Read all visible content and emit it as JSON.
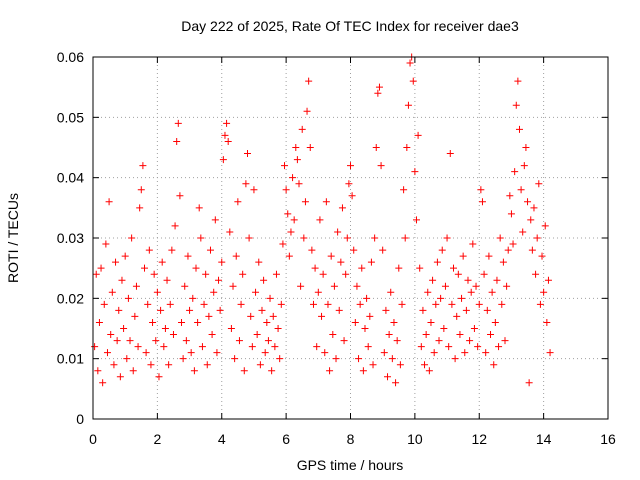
{
  "chart_data": {
    "type": "scatter",
    "title": "Day 222 of 2025, Rate Of TEC Index for receiver dae3",
    "xlabel": "GPS time / hours",
    "ylabel": "ROTI / TECUs",
    "xlim": [
      0,
      16
    ],
    "ylim": [
      0,
      0.06
    ],
    "grid": true,
    "marker": "+",
    "color": "#ff0000",
    "x_ticks": [
      {
        "value": 0,
        "label": "0"
      },
      {
        "value": 2,
        "label": "2"
      },
      {
        "value": 4,
        "label": "4"
      },
      {
        "value": 6,
        "label": "6"
      },
      {
        "value": 8,
        "label": "8"
      },
      {
        "value": 10,
        "label": "10"
      },
      {
        "value": 12,
        "label": "12"
      },
      {
        "value": 14,
        "label": "14"
      },
      {
        "value": 16,
        "label": "16"
      }
    ],
    "y_ticks": [
      {
        "value": 0,
        "label": "0"
      },
      {
        "value": 0.01,
        "label": "0.01"
      },
      {
        "value": 0.02,
        "label": "0.02"
      },
      {
        "value": 0.03,
        "label": "0.03"
      },
      {
        "value": 0.04,
        "label": "0.04"
      },
      {
        "value": 0.05,
        "label": "0.05"
      },
      {
        "value": 0.06,
        "label": "0.06"
      }
    ],
    "series": [
      {
        "name": "ROTI",
        "points": [
          [
            0.05,
            0.012
          ],
          [
            0.1,
            0.024
          ],
          [
            0.15,
            0.008
          ],
          [
            0.2,
            0.016
          ],
          [
            0.25,
            0.025
          ],
          [
            0.3,
            0.006
          ],
          [
            0.35,
            0.019
          ],
          [
            0.4,
            0.029
          ],
          [
            0.45,
            0.011
          ],
          [
            0.5,
            0.036
          ],
          [
            0.55,
            0.014
          ],
          [
            0.6,
            0.021
          ],
          [
            0.65,
            0.009
          ],
          [
            0.7,
            0.026
          ],
          [
            0.75,
            0.013
          ],
          [
            0.8,
            0.018
          ],
          [
            0.85,
            0.007
          ],
          [
            0.9,
            0.023
          ],
          [
            0.95,
            0.015
          ],
          [
            1.0,
            0.027
          ],
          [
            1.05,
            0.01
          ],
          [
            1.1,
            0.02
          ],
          [
            1.15,
            0.013
          ],
          [
            1.2,
            0.03
          ],
          [
            1.25,
            0.008
          ],
          [
            1.3,
            0.017
          ],
          [
            1.35,
            0.022
          ],
          [
            1.4,
            0.012
          ],
          [
            1.45,
            0.035
          ],
          [
            1.5,
            0.038
          ],
          [
            1.55,
            0.042
          ],
          [
            1.6,
            0.025
          ],
          [
            1.65,
            0.011
          ],
          [
            1.7,
            0.019
          ],
          [
            1.75,
            0.028
          ],
          [
            1.8,
            0.009
          ],
          [
            1.85,
            0.016
          ],
          [
            1.9,
            0.024
          ],
          [
            1.95,
            0.013
          ],
          [
            2.0,
            0.021
          ],
          [
            2.05,
            0.007
          ],
          [
            2.1,
            0.018
          ],
          [
            2.15,
            0.026
          ],
          [
            2.2,
            0.012
          ],
          [
            2.25,
            0.015
          ],
          [
            2.3,
            0.023
          ],
          [
            2.35,
            0.009
          ],
          [
            2.4,
            0.019
          ],
          [
            2.45,
            0.028
          ],
          [
            2.5,
            0.014
          ],
          [
            2.55,
            0.032
          ],
          [
            2.6,
            0.046
          ],
          [
            2.65,
            0.049
          ],
          [
            2.7,
            0.037
          ],
          [
            2.75,
            0.016
          ],
          [
            2.8,
            0.01
          ],
          [
            2.85,
            0.022
          ],
          [
            2.9,
            0.013
          ],
          [
            2.95,
            0.027
          ],
          [
            3.0,
            0.018
          ],
          [
            3.05,
            0.011
          ],
          [
            3.1,
            0.02
          ],
          [
            3.15,
            0.008
          ],
          [
            3.2,
            0.025
          ],
          [
            3.25,
            0.016
          ],
          [
            3.3,
            0.035
          ],
          [
            3.35,
            0.03
          ],
          [
            3.4,
            0.012
          ],
          [
            3.45,
            0.019
          ],
          [
            3.5,
            0.024
          ],
          [
            3.55,
            0.009
          ],
          [
            3.6,
            0.017
          ],
          [
            3.65,
            0.028
          ],
          [
            3.7,
            0.014
          ],
          [
            3.75,
            0.021
          ],
          [
            3.8,
            0.033
          ],
          [
            3.85,
            0.011
          ],
          [
            3.9,
            0.023
          ],
          [
            3.95,
            0.018
          ],
          [
            4.0,
            0.026
          ],
          [
            4.05,
            0.043
          ],
          [
            4.1,
            0.047
          ],
          [
            4.15,
            0.049
          ],
          [
            4.2,
            0.046
          ],
          [
            4.25,
            0.031
          ],
          [
            4.3,
            0.015
          ],
          [
            4.35,
            0.022
          ],
          [
            4.4,
            0.01
          ],
          [
            4.45,
            0.027
          ],
          [
            4.5,
            0.036
          ],
          [
            4.55,
            0.013
          ],
          [
            4.6,
            0.019
          ],
          [
            4.65,
            0.024
          ],
          [
            4.7,
            0.008
          ],
          [
            4.75,
            0.039
          ],
          [
            4.8,
            0.044
          ],
          [
            4.85,
            0.03
          ],
          [
            4.9,
            0.017
          ],
          [
            4.95,
            0.012
          ],
          [
            5.0,
            0.038
          ],
          [
            5.05,
            0.021
          ],
          [
            5.1,
            0.014
          ],
          [
            5.15,
            0.026
          ],
          [
            5.2,
            0.009
          ],
          [
            5.25,
            0.018
          ],
          [
            5.3,
            0.023
          ],
          [
            5.35,
            0.011
          ],
          [
            5.4,
            0.016
          ],
          [
            5.45,
            0.013
          ],
          [
            5.5,
            0.02
          ],
          [
            5.55,
            0.008
          ],
          [
            5.6,
            0.017
          ],
          [
            5.65,
            0.012
          ],
          [
            5.7,
            0.024
          ],
          [
            5.75,
            0.015
          ],
          [
            5.8,
            0.01
          ],
          [
            5.85,
            0.019
          ],
          [
            5.9,
            0.029
          ],
          [
            5.95,
            0.042
          ],
          [
            6.0,
            0.038
          ],
          [
            6.05,
            0.034
          ],
          [
            6.1,
            0.027
          ],
          [
            6.15,
            0.031
          ],
          [
            6.2,
            0.04
          ],
          [
            6.25,
            0.033
          ],
          [
            6.3,
            0.045
          ],
          [
            6.35,
            0.043
          ],
          [
            6.4,
            0.039
          ],
          [
            6.45,
            0.022
          ],
          [
            6.5,
            0.048
          ],
          [
            6.55,
            0.03
          ],
          [
            6.6,
            0.036
          ],
          [
            6.65,
            0.051
          ],
          [
            6.7,
            0.056
          ],
          [
            6.75,
            0.045
          ],
          [
            6.8,
            0.028
          ],
          [
            6.85,
            0.019
          ],
          [
            6.9,
            0.025
          ],
          [
            6.95,
            0.012
          ],
          [
            7.0,
            0.021
          ],
          [
            7.05,
            0.033
          ],
          [
            7.1,
            0.017
          ],
          [
            7.15,
            0.024
          ],
          [
            7.2,
            0.011
          ],
          [
            7.25,
            0.036
          ],
          [
            7.3,
            0.019
          ],
          [
            7.35,
            0.008
          ],
          [
            7.4,
            0.027
          ],
          [
            7.45,
            0.014
          ],
          [
            7.5,
            0.022
          ],
          [
            7.55,
            0.01
          ],
          [
            7.6,
            0.031
          ],
          [
            7.65,
            0.018
          ],
          [
            7.7,
            0.026
          ],
          [
            7.75,
            0.035
          ],
          [
            7.8,
            0.013
          ],
          [
            7.85,
            0.024
          ],
          [
            7.9,
            0.03
          ],
          [
            7.95,
            0.039
          ],
          [
            8.0,
            0.042
          ],
          [
            8.05,
            0.037
          ],
          [
            8.1,
            0.028
          ],
          [
            8.15,
            0.016
          ],
          [
            8.2,
            0.022
          ],
          [
            8.25,
            0.01
          ],
          [
            8.3,
            0.019
          ],
          [
            8.35,
            0.025
          ],
          [
            8.4,
            0.008
          ],
          [
            8.45,
            0.015
          ],
          [
            8.5,
            0.02
          ],
          [
            8.55,
            0.012
          ],
          [
            8.6,
            0.017
          ],
          [
            8.65,
            0.026
          ],
          [
            8.7,
            0.009
          ],
          [
            8.75,
            0.03
          ],
          [
            8.8,
            0.045
          ],
          [
            8.85,
            0.054
          ],
          [
            8.9,
            0.055
          ],
          [
            8.95,
            0.042
          ],
          [
            9.0,
            0.028
          ],
          [
            9.05,
            0.011
          ],
          [
            9.1,
            0.018
          ],
          [
            9.15,
            0.007
          ],
          [
            9.2,
            0.014
          ],
          [
            9.25,
            0.021
          ],
          [
            9.3,
            0.01
          ],
          [
            9.35,
            0.016
          ],
          [
            9.4,
            0.006
          ],
          [
            9.45,
            0.013
          ],
          [
            9.5,
            0.025
          ],
          [
            9.55,
            0.009
          ],
          [
            9.6,
            0.019
          ],
          [
            9.65,
            0.038
          ],
          [
            9.7,
            0.03
          ],
          [
            9.75,
            0.045
          ],
          [
            9.8,
            0.052
          ],
          [
            9.85,
            0.059
          ],
          [
            9.9,
            0.06
          ],
          [
            9.95,
            0.056
          ],
          [
            10.0,
            0.041
          ],
          [
            10.05,
            0.033
          ],
          [
            10.1,
            0.047
          ],
          [
            10.15,
            0.025
          ],
          [
            10.2,
            0.012
          ],
          [
            10.25,
            0.018
          ],
          [
            10.3,
            0.009
          ],
          [
            10.35,
            0.014
          ],
          [
            10.4,
            0.021
          ],
          [
            10.45,
            0.008
          ],
          [
            10.5,
            0.016
          ],
          [
            10.55,
            0.023
          ],
          [
            10.6,
            0.011
          ],
          [
            10.65,
            0.019
          ],
          [
            10.7,
            0.026
          ],
          [
            10.75,
            0.013
          ],
          [
            10.8,
            0.02
          ],
          [
            10.85,
            0.028
          ],
          [
            10.9,
            0.015
          ],
          [
            10.95,
            0.022
          ],
          [
            11.0,
            0.03
          ],
          [
            11.05,
            0.012
          ],
          [
            11.1,
            0.044
          ],
          [
            11.15,
            0.019
          ],
          [
            11.2,
            0.025
          ],
          [
            11.25,
            0.01
          ],
          [
            11.3,
            0.017
          ],
          [
            11.35,
            0.024
          ],
          [
            11.4,
            0.014
          ],
          [
            11.45,
            0.02
          ],
          [
            11.5,
            0.027
          ],
          [
            11.55,
            0.011
          ],
          [
            11.6,
            0.018
          ],
          [
            11.65,
            0.023
          ],
          [
            11.7,
            0.013
          ],
          [
            11.75,
            0.021
          ],
          [
            11.8,
            0.029
          ],
          [
            11.85,
            0.015
          ],
          [
            11.9,
            0.022
          ],
          [
            11.95,
            0.012
          ],
          [
            12.0,
            0.019
          ],
          [
            12.05,
            0.038
          ],
          [
            12.1,
            0.036
          ],
          [
            12.15,
            0.024
          ],
          [
            12.2,
            0.011
          ],
          [
            12.25,
            0.018
          ],
          [
            12.3,
            0.027
          ],
          [
            12.35,
            0.014
          ],
          [
            12.4,
            0.021
          ],
          [
            12.45,
            0.009
          ],
          [
            12.5,
            0.016
          ],
          [
            12.55,
            0.023
          ],
          [
            12.6,
            0.012
          ],
          [
            12.65,
            0.03
          ],
          [
            12.7,
            0.019
          ],
          [
            12.75,
            0.026
          ],
          [
            12.8,
            0.013
          ],
          [
            12.85,
            0.022
          ],
          [
            12.9,
            0.028
          ],
          [
            12.95,
            0.037
          ],
          [
            13.0,
            0.034
          ],
          [
            13.05,
            0.029
          ],
          [
            13.1,
            0.041
          ],
          [
            13.15,
            0.052
          ],
          [
            13.2,
            0.056
          ],
          [
            13.25,
            0.048
          ],
          [
            13.3,
            0.038
          ],
          [
            13.35,
            0.031
          ],
          [
            13.4,
            0.042
          ],
          [
            13.45,
            0.045
          ],
          [
            13.5,
            0.036
          ],
          [
            13.55,
            0.006
          ],
          [
            13.6,
            0.033
          ],
          [
            13.65,
            0.028
          ],
          [
            13.7,
            0.035
          ],
          [
            13.75,
            0.024
          ],
          [
            13.8,
            0.03
          ],
          [
            13.85,
            0.039
          ],
          [
            13.9,
            0.019
          ],
          [
            13.95,
            0.027
          ],
          [
            14.0,
            0.021
          ],
          [
            14.05,
            0.032
          ],
          [
            14.1,
            0.016
          ],
          [
            14.15,
            0.023
          ],
          [
            14.2,
            0.011
          ]
        ]
      }
    ]
  }
}
